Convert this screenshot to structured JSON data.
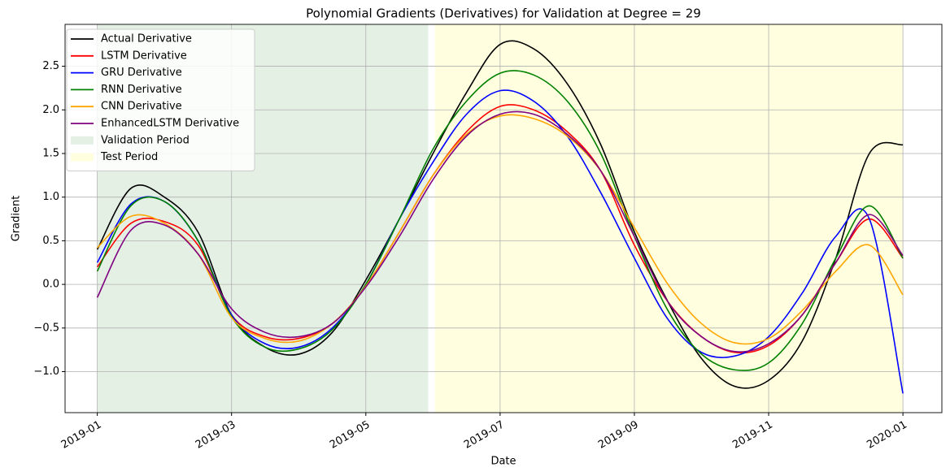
{
  "chart_data": {
    "type": "line",
    "title": "Polynomial Gradients (Derivatives) for Validation at Degree = 29",
    "x_label": "Date",
    "y_label": "Gradient",
    "x": [
      0,
      0.5,
      1,
      1.5,
      2,
      2.5,
      3,
      3.5,
      4,
      4.5,
      5,
      5.5,
      6,
      6.5,
      7,
      7.5,
      8,
      8.5,
      9,
      9.5,
      10,
      10.5,
      11,
      11.5,
      12
    ],
    "series": [
      {
        "name": "Actual Derivative",
        "color": "#000000",
        "values": [
          0.4,
          1.1,
          1.0,
          0.6,
          -0.35,
          -0.72,
          -0.8,
          -0.55,
          0.05,
          0.75,
          1.5,
          2.2,
          2.75,
          2.7,
          2.3,
          1.6,
          0.6,
          -0.2,
          -0.85,
          -1.17,
          -1.1,
          -0.65,
          0.3,
          1.5,
          1.6
        ]
      },
      {
        "name": "LSTM Derivative",
        "color": "#ff0000",
        "values": [
          0.2,
          0.7,
          0.72,
          0.45,
          -0.35,
          -0.6,
          -0.62,
          -0.45,
          -0.02,
          0.6,
          1.25,
          1.75,
          2.04,
          2.0,
          1.75,
          1.3,
          0.45,
          -0.2,
          -0.6,
          -0.78,
          -0.7,
          -0.35,
          0.25,
          0.75,
          0.3
        ]
      },
      {
        "name": "GRU Derivative",
        "color": "#0000ff",
        "values": [
          0.25,
          0.92,
          0.95,
          0.5,
          -0.35,
          -0.68,
          -0.72,
          -0.5,
          0.0,
          0.75,
          1.4,
          1.95,
          2.22,
          2.1,
          1.7,
          1.05,
          0.3,
          -0.4,
          -0.78,
          -0.82,
          -0.6,
          -0.1,
          0.55,
          0.75,
          -1.25
        ]
      },
      {
        "name": "RNN Derivative",
        "color": "#008000",
        "values": [
          0.15,
          0.9,
          0.95,
          0.5,
          -0.37,
          -0.72,
          -0.74,
          -0.52,
          0.0,
          0.75,
          1.55,
          2.1,
          2.42,
          2.4,
          2.1,
          1.5,
          0.55,
          -0.3,
          -0.8,
          -0.98,
          -0.9,
          -0.45,
          0.3,
          0.9,
          0.3
        ]
      },
      {
        "name": "CNN Derivative",
        "color": "#ffa500",
        "values": [
          0.42,
          0.78,
          0.7,
          0.35,
          -0.38,
          -0.62,
          -0.65,
          -0.45,
          -0.02,
          0.6,
          1.25,
          1.72,
          1.93,
          1.9,
          1.7,
          1.3,
          0.65,
          0.0,
          -0.45,
          -0.67,
          -0.62,
          -0.3,
          0.15,
          0.45,
          -0.12
        ]
      },
      {
        "name": "EnhancedLSTM Derivative",
        "color": "#800080",
        "values": [
          -0.15,
          0.62,
          0.68,
          0.35,
          -0.28,
          -0.55,
          -0.6,
          -0.45,
          -0.03,
          0.55,
          1.2,
          1.7,
          1.95,
          1.95,
          1.72,
          1.3,
          0.55,
          -0.2,
          -0.6,
          -0.77,
          -0.68,
          -0.35,
          0.25,
          0.8,
          0.33
        ]
      }
    ],
    "spans": [
      {
        "name": "Validation Period",
        "color": "#e5f0e5",
        "range": [
          0,
          4.93
        ]
      },
      {
        "name": "Test Period",
        "color": "#ffffe0",
        "range": [
          5.03,
          12
        ]
      }
    ],
    "xlim": [
      -0.48,
      12.58
    ],
    "xticks": [
      {
        "value": 0,
        "label": "2019-01"
      },
      {
        "value": 2,
        "label": "2019-03"
      },
      {
        "value": 4,
        "label": "2019-05"
      },
      {
        "value": 6,
        "label": "2019-07"
      },
      {
        "value": 8,
        "label": "2019-09"
      },
      {
        "value": 10,
        "label": "2019-11"
      },
      {
        "value": 12,
        "label": "2020-01"
      }
    ],
    "ylim": [
      -1.47,
      2.98
    ],
    "yticks": [
      {
        "value": -1,
        "label": "−1.0"
      },
      {
        "value": -0.5,
        "label": "−0.5"
      },
      {
        "value": 0,
        "label": "0.0"
      },
      {
        "value": 0.5,
        "label": "0.5"
      },
      {
        "value": 1,
        "label": "1.0"
      },
      {
        "value": 1.5,
        "label": "1.5"
      },
      {
        "value": 2,
        "label": "2.0"
      },
      {
        "value": 2.5,
        "label": "2.5"
      }
    ],
    "grid": true,
    "legend": "upper left"
  }
}
